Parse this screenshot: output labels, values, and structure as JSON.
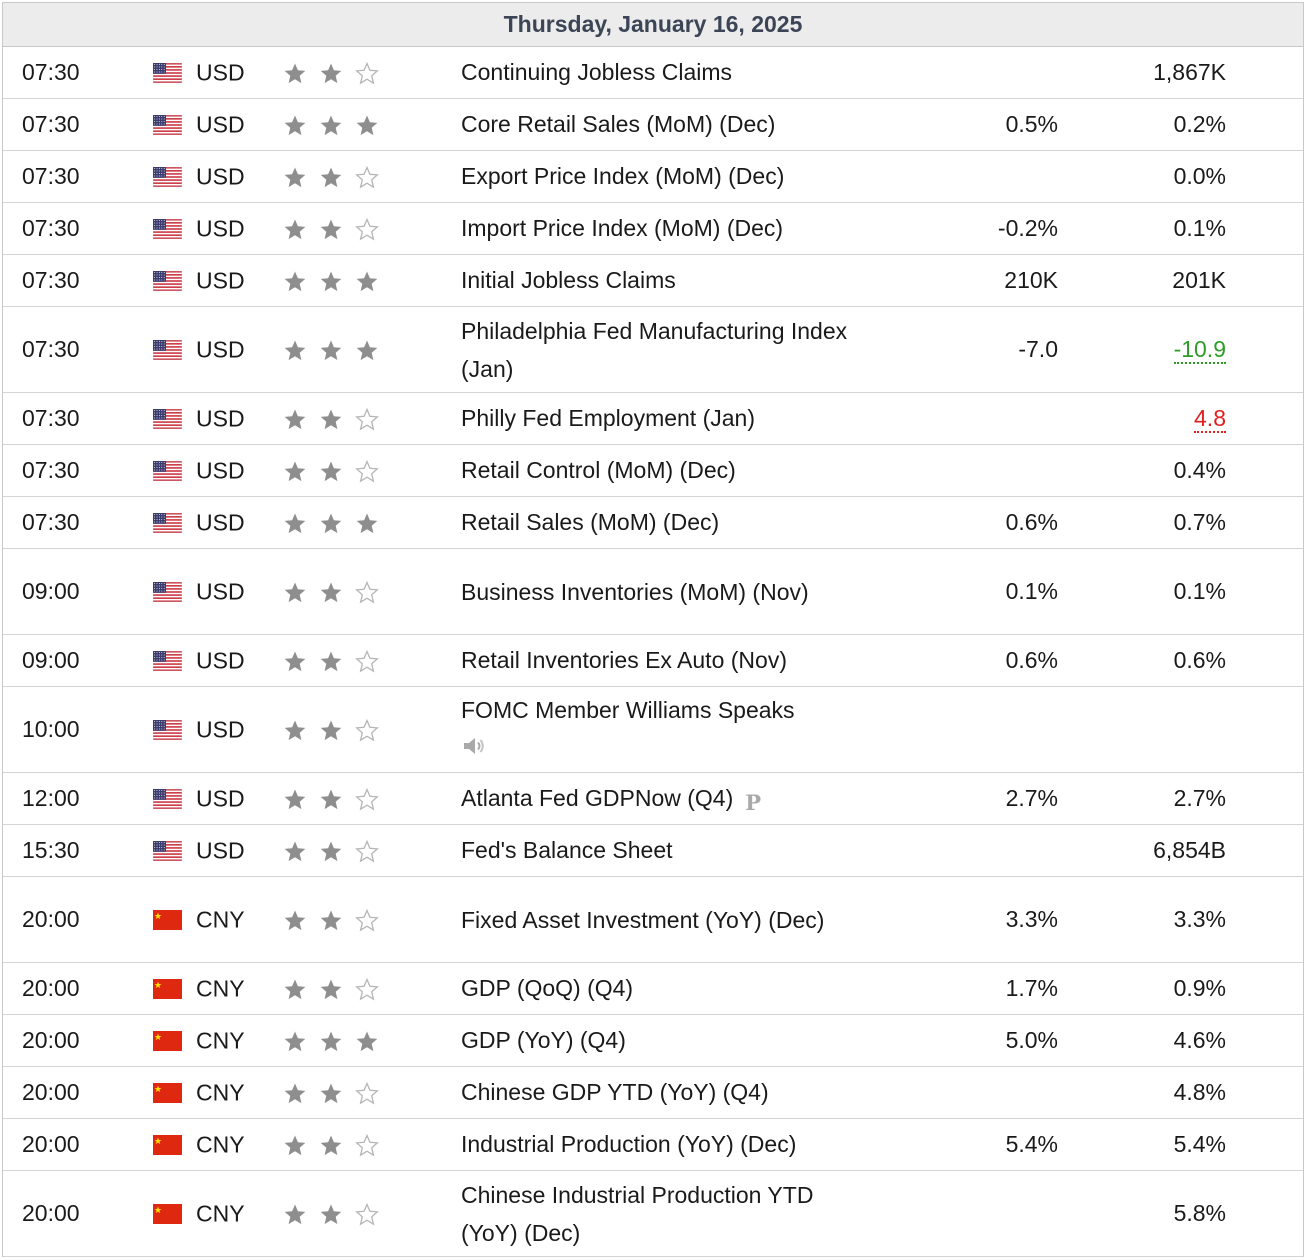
{
  "header": {
    "date": "Thursday, January 16, 2025"
  },
  "colors": {
    "beat": "#2e9d28",
    "miss": "#e02020",
    "star_filled": "#8e8e8e",
    "star_empty": "#b5b5b5"
  },
  "rows": [
    {
      "time": "07:30",
      "flag": "us-flag-icon",
      "currency": "USD",
      "stars": 2,
      "event": "Continuing Jobless Claims",
      "forecast": "",
      "actual": "1,867K",
      "tall": false
    },
    {
      "time": "07:30",
      "flag": "us-flag-icon",
      "currency": "USD",
      "stars": 3,
      "event": "Core Retail Sales (MoM) (Dec)",
      "forecast": "0.5%",
      "actual": "0.2%",
      "tall": false
    },
    {
      "time": "07:30",
      "flag": "us-flag-icon",
      "currency": "USD",
      "stars": 2,
      "event": "Export Price Index (MoM) (Dec)",
      "forecast": "",
      "actual": "0.0%",
      "tall": false
    },
    {
      "time": "07:30",
      "flag": "us-flag-icon",
      "currency": "USD",
      "stars": 2,
      "event": "Import Price Index (MoM) (Dec)",
      "forecast": "-0.2%",
      "actual": "0.1%",
      "tall": false
    },
    {
      "time": "07:30",
      "flag": "us-flag-icon",
      "currency": "USD",
      "stars": 3,
      "event": "Initial Jobless Claims",
      "forecast": "210K",
      "actual": "201K",
      "tall": false
    },
    {
      "time": "07:30",
      "flag": "us-flag-icon",
      "currency": "USD",
      "stars": 3,
      "event": "Philadelphia Fed Manufacturing Index (Jan)",
      "forecast": "-7.0",
      "actual": "-10.9",
      "actual_style": "green",
      "tall": true
    },
    {
      "time": "07:30",
      "flag": "us-flag-icon",
      "currency": "USD",
      "stars": 2,
      "event": "Philly Fed Employment (Jan)",
      "forecast": "",
      "actual": "4.8",
      "actual_style": "red",
      "tall": false
    },
    {
      "time": "07:30",
      "flag": "us-flag-icon",
      "currency": "USD",
      "stars": 2,
      "event": "Retail Control (MoM) (Dec)",
      "forecast": "",
      "actual": "0.4%",
      "tall": false
    },
    {
      "time": "07:30",
      "flag": "us-flag-icon",
      "currency": "USD",
      "stars": 3,
      "event": "Retail Sales (MoM) (Dec)",
      "forecast": "0.6%",
      "actual": "0.7%",
      "tall": false
    },
    {
      "time": "09:00",
      "flag": "us-flag-icon",
      "currency": "USD",
      "stars": 2,
      "event": "Business Inventories (MoM) (Nov)",
      "forecast": "0.1%",
      "actual": "0.1%",
      "tall": true
    },
    {
      "time": "09:00",
      "flag": "us-flag-icon",
      "currency": "USD",
      "stars": 2,
      "event": "Retail Inventories Ex Auto (Nov)",
      "forecast": "0.6%",
      "actual": "0.6%",
      "tall": false
    },
    {
      "time": "10:00",
      "flag": "us-flag-icon",
      "currency": "USD",
      "stars": 2,
      "event": "FOMC Member Williams Speaks",
      "forecast": "",
      "actual": "",
      "tall": true,
      "extra_icon": "speaker-icon"
    },
    {
      "time": "12:00",
      "flag": "us-flag-icon",
      "currency": "USD",
      "stars": 2,
      "event": "Atlanta Fed GDPNow (Q4)",
      "forecast": "2.7%",
      "actual": "2.7%",
      "tall": false,
      "extra_icon": "preliminary-icon",
      "extra_icon_text": "P"
    },
    {
      "time": "15:30",
      "flag": "us-flag-icon",
      "currency": "USD",
      "stars": 2,
      "event": "Fed's Balance Sheet",
      "forecast": "",
      "actual": "6,854B",
      "tall": false
    },
    {
      "time": "20:00",
      "flag": "cn-flag-icon",
      "currency": "CNY",
      "stars": 2,
      "event": "Fixed Asset Investment (YoY) (Dec)",
      "forecast": "3.3%",
      "actual": "3.3%",
      "tall": true
    },
    {
      "time": "20:00",
      "flag": "cn-flag-icon",
      "currency": "CNY",
      "stars": 2,
      "event": "GDP (QoQ) (Q4)",
      "forecast": "1.7%",
      "actual": "0.9%",
      "tall": false
    },
    {
      "time": "20:00",
      "flag": "cn-flag-icon",
      "currency": "CNY",
      "stars": 3,
      "event": "GDP (YoY) (Q4)",
      "forecast": "5.0%",
      "actual": "4.6%",
      "tall": false
    },
    {
      "time": "20:00",
      "flag": "cn-flag-icon",
      "currency": "CNY",
      "stars": 2,
      "event": "Chinese GDP YTD (YoY) (Q4)",
      "forecast": "",
      "actual": "4.8%",
      "tall": false
    },
    {
      "time": "20:00",
      "flag": "cn-flag-icon",
      "currency": "CNY",
      "stars": 2,
      "event": "Industrial Production (YoY) (Dec)",
      "forecast": "5.4%",
      "actual": "5.4%",
      "tall": false
    },
    {
      "time": "20:00",
      "flag": "cn-flag-icon",
      "currency": "CNY",
      "stars": 2,
      "event": "Chinese Industrial Production YTD (YoY) (Dec)",
      "forecast": "",
      "actual": "5.8%",
      "tall": true
    }
  ]
}
